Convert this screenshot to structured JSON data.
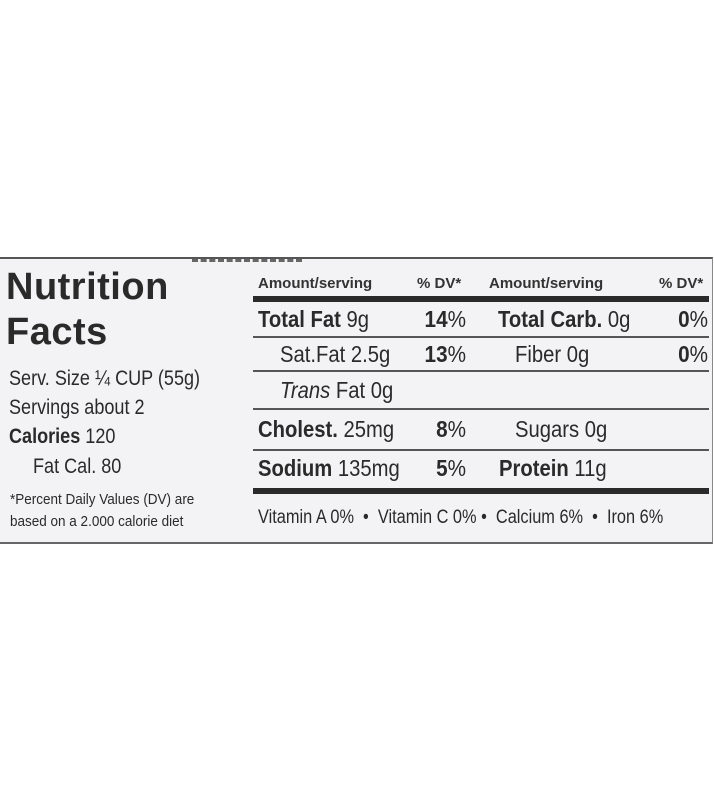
{
  "title_line1": "Nutrition",
  "title_line2": "Facts",
  "serving_size_label": "Serv. Size",
  "serving_size_value": "¼ CUP (55g)",
  "servings": "Servings about 2",
  "calories_label": "Calories",
  "calories_value": "120",
  "fat_cal": "Fat Cal. 80",
  "footnote_line1": "*Percent Daily Values (DV) are",
  "footnote_line2": "based on a 2.000 calorie diet",
  "headers": {
    "amount": "Amount/serving",
    "dv": "% DV*"
  },
  "left_rows": [
    {
      "name": "Total Fat",
      "amount": "9g",
      "dv_num": "14",
      "dv_unit": "%"
    },
    {
      "name": "Sat.Fat",
      "amount": "2.5g",
      "dv_num": "13",
      "dv_unit": "%"
    },
    {
      "name": "Trans",
      "amount": "Fat 0g"
    },
    {
      "name": "Cholest.",
      "amount": "25mg",
      "dv_num": "8",
      "dv_unit": "%"
    },
    {
      "name": "Sodium",
      "amount": "135mg",
      "dv_num": "5",
      "dv_unit": "%"
    }
  ],
  "right_rows": [
    {
      "name": "Total Carb.",
      "amount": "0g",
      "dv_num": "0",
      "dv_unit": "%"
    },
    {
      "name": "Fiber 0g",
      "dv_num": "0",
      "dv_unit": "%"
    },
    {
      "name": "Sugars 0g"
    },
    {
      "name": "Protein",
      "amount": "11g"
    }
  ],
  "vitamins": "Vitamin A 0%  •  Vitamin C 0% •  Calcium 6%  •  Iron 6%"
}
